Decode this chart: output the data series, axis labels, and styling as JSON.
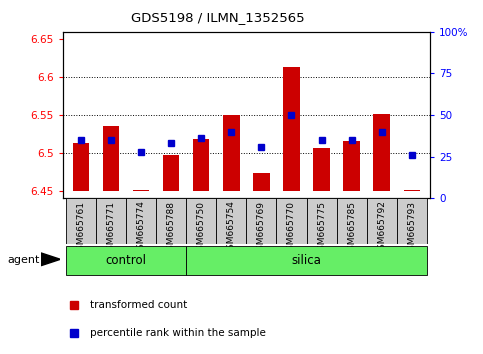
{
  "title": "GDS5198 / ILMN_1352565",
  "samples": [
    "GSM665761",
    "GSM665771",
    "GSM665774",
    "GSM665788",
    "GSM665750",
    "GSM665754",
    "GSM665769",
    "GSM665770",
    "GSM665775",
    "GSM665785",
    "GSM665792",
    "GSM665793"
  ],
  "groups": [
    "control",
    "control",
    "control",
    "control",
    "silica",
    "silica",
    "silica",
    "silica",
    "silica",
    "silica",
    "silica",
    "silica"
  ],
  "red_values": [
    6.513,
    6.535,
    6.451,
    6.497,
    6.518,
    6.55,
    6.474,
    6.613,
    6.506,
    6.516,
    6.552,
    6.451
  ],
  "blue_pct": [
    35,
    35,
    28,
    33,
    36,
    40,
    31,
    50,
    35,
    35,
    40,
    26
  ],
  "ylim_left": [
    6.44,
    6.66
  ],
  "ylim_right": [
    0,
    100
  ],
  "yticks_left": [
    6.45,
    6.5,
    6.55,
    6.6,
    6.65
  ],
  "yticks_right": [
    0,
    25,
    50,
    75,
    100
  ],
  "ytick_labels_left": [
    "6.45",
    "6.5",
    "6.55",
    "6.6",
    "6.65"
  ],
  "ytick_labels_right": [
    "0",
    "25",
    "50",
    "75",
    "100%"
  ],
  "hlines": [
    6.5,
    6.55,
    6.6
  ],
  "base_value": 6.45,
  "bar_color": "#CC0000",
  "dot_color": "#0000CC",
  "group_color": "#66EE66",
  "sample_bg_color": "#CCCCCC",
  "legend_bar": "transformed count",
  "legend_dot": "percentile rank within the sample",
  "n_control": 4,
  "n_silica": 8
}
